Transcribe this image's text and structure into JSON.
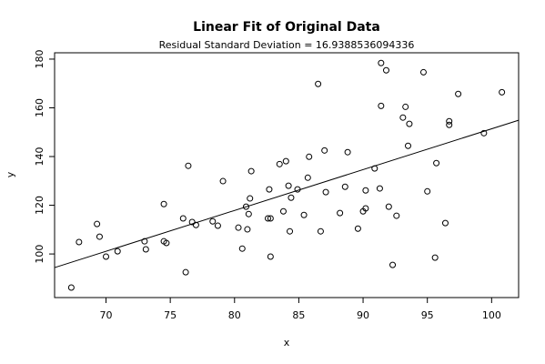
{
  "chart_data": {
    "type": "scatter",
    "title": "Linear Fit of Original Data",
    "subtitle": "Residual Standard Deviation =  16.9388536094336",
    "xlabel": "x",
    "ylabel": "y",
    "x": [
      67.3,
      67.9,
      69.3,
      69.5,
      70.0,
      70.9,
      73.0,
      73.1,
      74.5,
      74.5,
      74.7,
      76.0,
      76.4,
      76.2,
      76.7,
      77.0,
      78.3,
      78.7,
      79.1,
      80.3,
      80.6,
      80.9,
      81.0,
      81.1,
      81.2,
      81.3,
      82.6,
      82.7,
      82.8,
      82.8,
      83.5,
      83.8,
      84.0,
      84.2,
      84.3,
      84.4,
      84.9,
      85.4,
      85.7,
      85.8,
      86.5,
      86.7,
      87.0,
      87.1,
      88.2,
      88.6,
      88.8,
      89.6,
      90.0,
      90.2,
      90.2,
      90.9,
      91.3,
      91.4,
      91.4,
      91.8,
      92.0,
      92.3,
      92.6,
      93.1,
      93.3,
      93.5,
      93.6,
      94.7,
      95.0,
      95.6,
      95.7,
      96.4,
      96.7,
      96.7,
      97.4,
      99.4,
      100.8
    ],
    "values": [
      86.2,
      104.9,
      112.3,
      107.1,
      98.9,
      101.1,
      105.2,
      101.9,
      120.5,
      105.2,
      104.5,
      114.6,
      136.2,
      92.5,
      113.1,
      111.9,
      113.4,
      111.6,
      129.9,
      110.8,
      102.2,
      119.4,
      110.1,
      116.4,
      122.8,
      134.0,
      114.6,
      126.5,
      114.6,
      98.9,
      136.9,
      117.5,
      138.1,
      128.0,
      109.3,
      123.1,
      126.5,
      116.0,
      131.3,
      139.9,
      169.8,
      109.3,
      142.5,
      125.4,
      116.8,
      127.6,
      141.8,
      110.4,
      117.5,
      118.7,
      126.1,
      135.1,
      126.9,
      178.4,
      160.8,
      175.4,
      119.4,
      95.5,
      115.7,
      156.0,
      160.4,
      144.4,
      153.4,
      174.6,
      125.7,
      98.5,
      137.3,
      112.7,
      154.5,
      153.0,
      165.7,
      149.6,
      166.4
    ],
    "fit_line": {
      "x": [
        66.0,
        102.1
      ],
      "values": [
        94.4,
        154.9
      ]
    },
    "color": "#000000",
    "xlim": [
      66.0,
      102.1
    ],
    "ylim": [
      82.1,
      182.6
    ],
    "xticks": [
      70,
      75,
      80,
      85,
      90,
      95,
      100
    ],
    "yticks": [
      100,
      120,
      140,
      160,
      180
    ]
  }
}
